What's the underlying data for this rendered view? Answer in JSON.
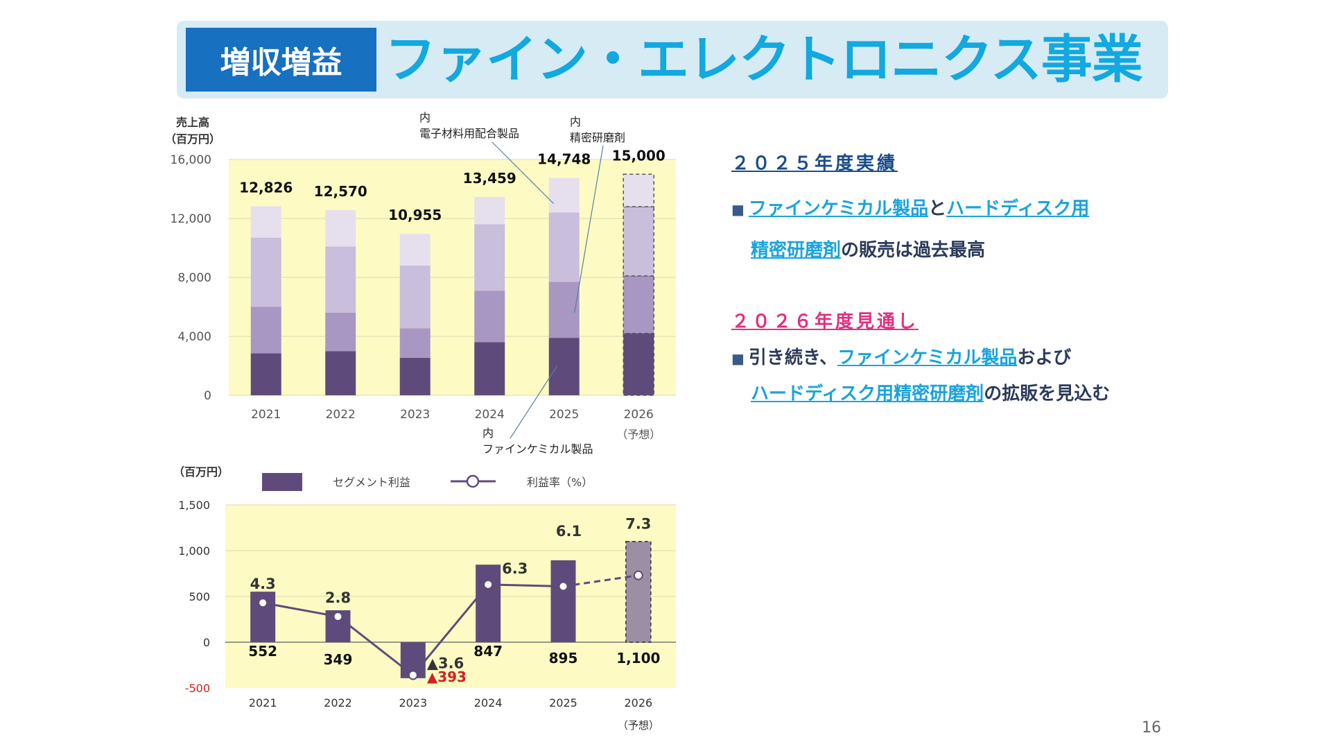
{
  "title": {
    "badge": "増収増益",
    "main": "ファイン・エレクトロニクス事業"
  },
  "page_number": "16",
  "right_panel": {
    "section1_title": "２０２５年度実績",
    "section1_line1": {
      "bullet": "■",
      "hl1": "ファインケミカル製品",
      "mid": "と",
      "hl2": "ハードディスク用"
    },
    "section1_line2": {
      "hl1": "精密研磨剤",
      "rest": "の販売は過去最高"
    },
    "section2_title": "２０２６年度見通し",
    "section2_line1": {
      "bullet": "■",
      "pre": "引き続き、",
      "hl1": "ファインケミカル製品",
      "rest": "および"
    },
    "section2_line2": {
      "hl1": "ハードディスク用精密研磨剤",
      "rest": "の拡販を見込む"
    }
  },
  "colors": {
    "plot_bg": "#fdfbc3",
    "seg_dark": "#5f4b7b",
    "seg_mid": "#a897c2",
    "seg_light": "#c9bedb",
    "seg_top": "#e6e0ee",
    "forecast_bar": "#9c8fa3",
    "line": "#5f4b7b",
    "negative": "#d32020",
    "accent_blue": "#1aa3dc"
  },
  "chart_data": [
    {
      "type": "bar",
      "stacked": true,
      "ylabel_line1": "売上高",
      "ylabel_line2": "（百万円）",
      "ylim": [
        0,
        16000
      ],
      "yticks": [
        "16,000",
        "12,000",
        "8,000",
        "4,000",
        "0"
      ],
      "ytick_values": [
        16000,
        12000,
        8000,
        4000,
        0
      ],
      "categories": [
        "2021",
        "2022",
        "2023",
        "2024",
        "2025",
        "2026"
      ],
      "category_sub": [
        "",
        "",
        "",
        "",
        "",
        "（予想）"
      ],
      "totals": [
        12826,
        12570,
        10955,
        13459,
        14748,
        15000
      ],
      "total_labels": [
        "12,826",
        "12,570",
        "10,955",
        "13,459",
        "14,748",
        "15,000"
      ],
      "forecast_index": 5,
      "series": [
        {
          "values": [
            2850,
            3000,
            2550,
            3600,
            3900,
            4200
          ]
        },
        {
          "values": [
            3150,
            2600,
            2000,
            3500,
            3800,
            3900
          ]
        },
        {
          "values": [
            4700,
            4500,
            4250,
            4500,
            4700,
            4700
          ]
        },
        {
          "values": [
            2126,
            2470,
            2155,
            1859,
            2348,
            2200
          ]
        }
      ],
      "annotations": {
        "a1_line1": "内",
        "a1_line2": "電子材料用配合製品",
        "a2_line1": "内",
        "a2_line2": "精密研磨剤",
        "a3_line1": "内",
        "a3_line2": "ファインケミカル製品"
      }
    },
    {
      "type": "bar",
      "ylabel": "（百万円）",
      "ylim": [
        -500,
        1500
      ],
      "yticks": [
        "1,500",
        "1,000",
        "500",
        "0",
        "-500"
      ],
      "ytick_values": [
        1500,
        1000,
        500,
        0,
        -500
      ],
      "categories": [
        "2021",
        "2022",
        "2023",
        "2024",
        "2025",
        "2026"
      ],
      "category_sub": [
        "",
        "",
        "",
        "",
        "",
        "（予想）"
      ],
      "legend": {
        "bar": "セグメント利益",
        "line": "利益率（%）"
      },
      "bar_series": {
        "name": "セグメント利益",
        "values": [
          552,
          349,
          -393,
          847,
          895,
          1100
        ],
        "labels": [
          "552",
          "349",
          "▲393",
          "847",
          "895",
          "1,100"
        ]
      },
      "line_series": {
        "name": "利益率（%）",
        "values": [
          4.3,
          2.8,
          -3.6,
          6.3,
          6.1,
          7.3
        ],
        "labels": [
          "4.3",
          "2.8",
          "▲3.6",
          "6.3",
          "6.1",
          "7.3"
        ]
      },
      "forecast_index": 5
    }
  ]
}
